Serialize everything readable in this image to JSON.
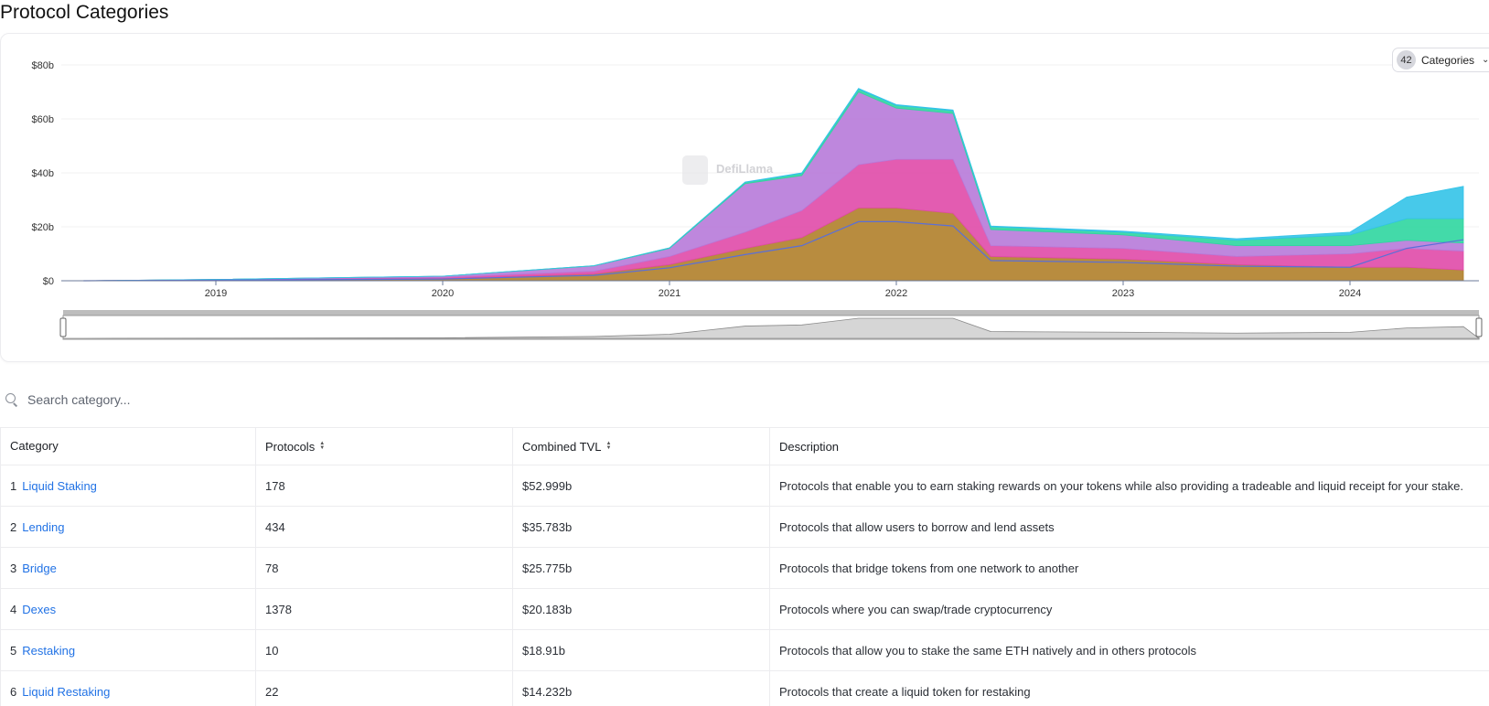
{
  "page": {
    "title": "Protocol Categories"
  },
  "category_selector": {
    "count": "42",
    "label": "Categories",
    "icon": "chevron-down-icon"
  },
  "watermark": {
    "text": "DefiLlama"
  },
  "search": {
    "placeholder": "Search category...",
    "value": "",
    "icon": "search-icon"
  },
  "chart_data": {
    "type": "area",
    "stacked": true,
    "x_ticks": [
      "2019",
      "2020",
      "2021",
      "2022",
      "2023",
      "2024"
    ],
    "y_ticks": [
      "$0",
      "$20b",
      "$40b",
      "$60b",
      "$80b"
    ],
    "ylim": [
      0,
      80
    ],
    "grid": true,
    "series_colors": [
      "#b07f2a",
      "#e04aa8",
      "#b77ad9",
      "#2fd6a0",
      "#33c3e8",
      "#5a6fd8"
    ],
    "x": [
      "2018-06",
      "2019-01",
      "2020-01",
      "2020-09",
      "2021-01",
      "2021-05",
      "2021-08",
      "2021-11",
      "2022-01",
      "2022-04",
      "2022-06",
      "2023-01",
      "2023-07",
      "2024-01",
      "2024-04",
      "2024-07"
    ],
    "series": [
      {
        "values": [
          0,
          0.3,
          0.8,
          2.5,
          6,
          12,
          16,
          27,
          27,
          25,
          9,
          8,
          6,
          5,
          5,
          4
        ]
      },
      {
        "values": [
          0,
          0.1,
          0.5,
          1,
          3,
          6,
          10,
          16,
          18,
          20,
          4,
          4,
          3,
          5,
          7,
          7
        ]
      },
      {
        "values": [
          0,
          0.1,
          0.4,
          2,
          3,
          18,
          13,
          27,
          19,
          17,
          6,
          5,
          4,
          3,
          3,
          3
        ]
      },
      {
        "values": [
          0,
          0,
          0,
          0.1,
          0.2,
          0.5,
          0.8,
          1,
          1,
          1,
          1,
          1,
          2,
          4,
          8,
          9
        ]
      },
      {
        "values": [
          0,
          0,
          0,
          0,
          0,
          0.1,
          0.2,
          0.3,
          0.3,
          0.3,
          0.3,
          0.4,
          0.6,
          1,
          8,
          12
        ]
      }
    ]
  },
  "table": {
    "headers": {
      "category": "Category",
      "protocols": "Protocols",
      "tvl": "Combined TVL",
      "description": "Description"
    },
    "rows": [
      {
        "rank": "1",
        "name": "Liquid Staking",
        "protocols": "178",
        "tvl": "$52.999b",
        "description": "Protocols that enable you to earn staking rewards on your tokens while also providing a tradeable and liquid receipt for your stake."
      },
      {
        "rank": "2",
        "name": "Lending",
        "protocols": "434",
        "tvl": "$35.783b",
        "description": "Protocols that allow users to borrow and lend assets"
      },
      {
        "rank": "3",
        "name": "Bridge",
        "protocols": "78",
        "tvl": "$25.775b",
        "description": "Protocols that bridge tokens from one network to another"
      },
      {
        "rank": "4",
        "name": "Dexes",
        "protocols": "1378",
        "tvl": "$20.183b",
        "description": "Protocols where you can swap/trade cryptocurrency"
      },
      {
        "rank": "5",
        "name": "Restaking",
        "protocols": "10",
        "tvl": "$18.91b",
        "description": "Protocols that allow you to stake the same ETH natively and in others protocols"
      },
      {
        "rank": "6",
        "name": "Liquid Restaking",
        "protocols": "22",
        "tvl": "$14.232b",
        "description": "Protocols that create a liquid token for restaking"
      }
    ]
  }
}
